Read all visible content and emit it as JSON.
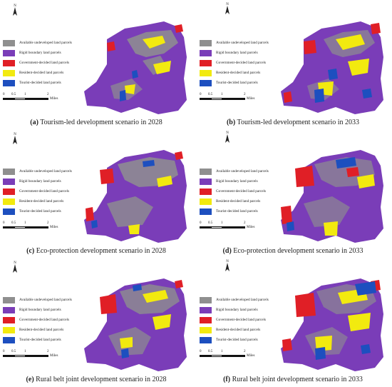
{
  "legend": {
    "items": [
      {
        "label": "Available undeveloped land parcels",
        "color": "#8f8f8f"
      },
      {
        "label": "Rigid boundary land parcels",
        "color": "#7a3db8"
      },
      {
        "label": "Government-decided land parcels",
        "color": "#e01f26"
      },
      {
        "label": "Resident-decided land parcels",
        "color": "#f2ea0f"
      },
      {
        "label": "Tourist-decided land parcels",
        "color": "#1d4fbf"
      }
    ]
  },
  "scale_bar": {
    "ticks": [
      "0",
      "0.5",
      "1",
      "2"
    ],
    "units": "Miles"
  },
  "north_label": "N",
  "panels": [
    {
      "letter": "(a)",
      "caption": "Tourism-led development scenario in 2028"
    },
    {
      "letter": "(b)",
      "caption": "Tourism-led development scenario in 2033"
    },
    {
      "letter": "(c)",
      "caption": "Eco-protection development scenario in 2028"
    },
    {
      "letter": "(d)",
      "caption": "Eco-protection development scenario in 2033"
    },
    {
      "letter": "(e)",
      "caption": "Rural belt joint development scenario in 2028"
    },
    {
      "letter": "(f)",
      "caption": "Rural belt joint development scenario in 2033"
    }
  ]
}
